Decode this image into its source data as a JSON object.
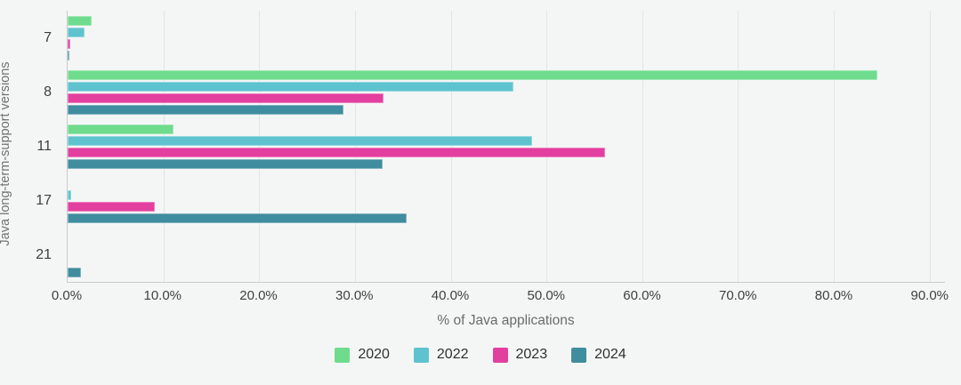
{
  "chart_data": {
    "type": "bar",
    "orientation": "horizontal",
    "title": "",
    "xlabel": "% of Java applications",
    "ylabel": "Java long-term-support versions",
    "categories": [
      "7",
      "8",
      "11",
      "17",
      "21"
    ],
    "series": [
      {
        "name": "2020",
        "color": "#6edc8c",
        "values": [
          2.5,
          84.5,
          11.1,
          0,
          0
        ]
      },
      {
        "name": "2022",
        "color": "#5ec3cf",
        "values": [
          1.8,
          46.5,
          48.5,
          0.4,
          0
        ]
      },
      {
        "name": "2023",
        "color": "#e23f9f",
        "values": [
          0.3,
          33.0,
          56.1,
          9.1,
          0
        ]
      },
      {
        "name": "2024",
        "color": "#3f8d9e",
        "values": [
          0.2,
          28.8,
          32.9,
          35.4,
          1.4
        ]
      }
    ],
    "xlim": [
      0,
      90
    ],
    "x_ticks": [
      "0.0%",
      "10.0%",
      "20.0%",
      "30.0%",
      "40.0%",
      "50.0%",
      "60.0%",
      "70.0%",
      "80.0%",
      "90.0%"
    ],
    "grid": true,
    "legend_position": "bottom"
  },
  "colors": {
    "background": "#f4f6f5",
    "gridline": "#e1e5e4",
    "axis_line": "#c6cccb",
    "tick_text": "#3f3f3f",
    "axis_title_text": "#6b6b6b"
  }
}
